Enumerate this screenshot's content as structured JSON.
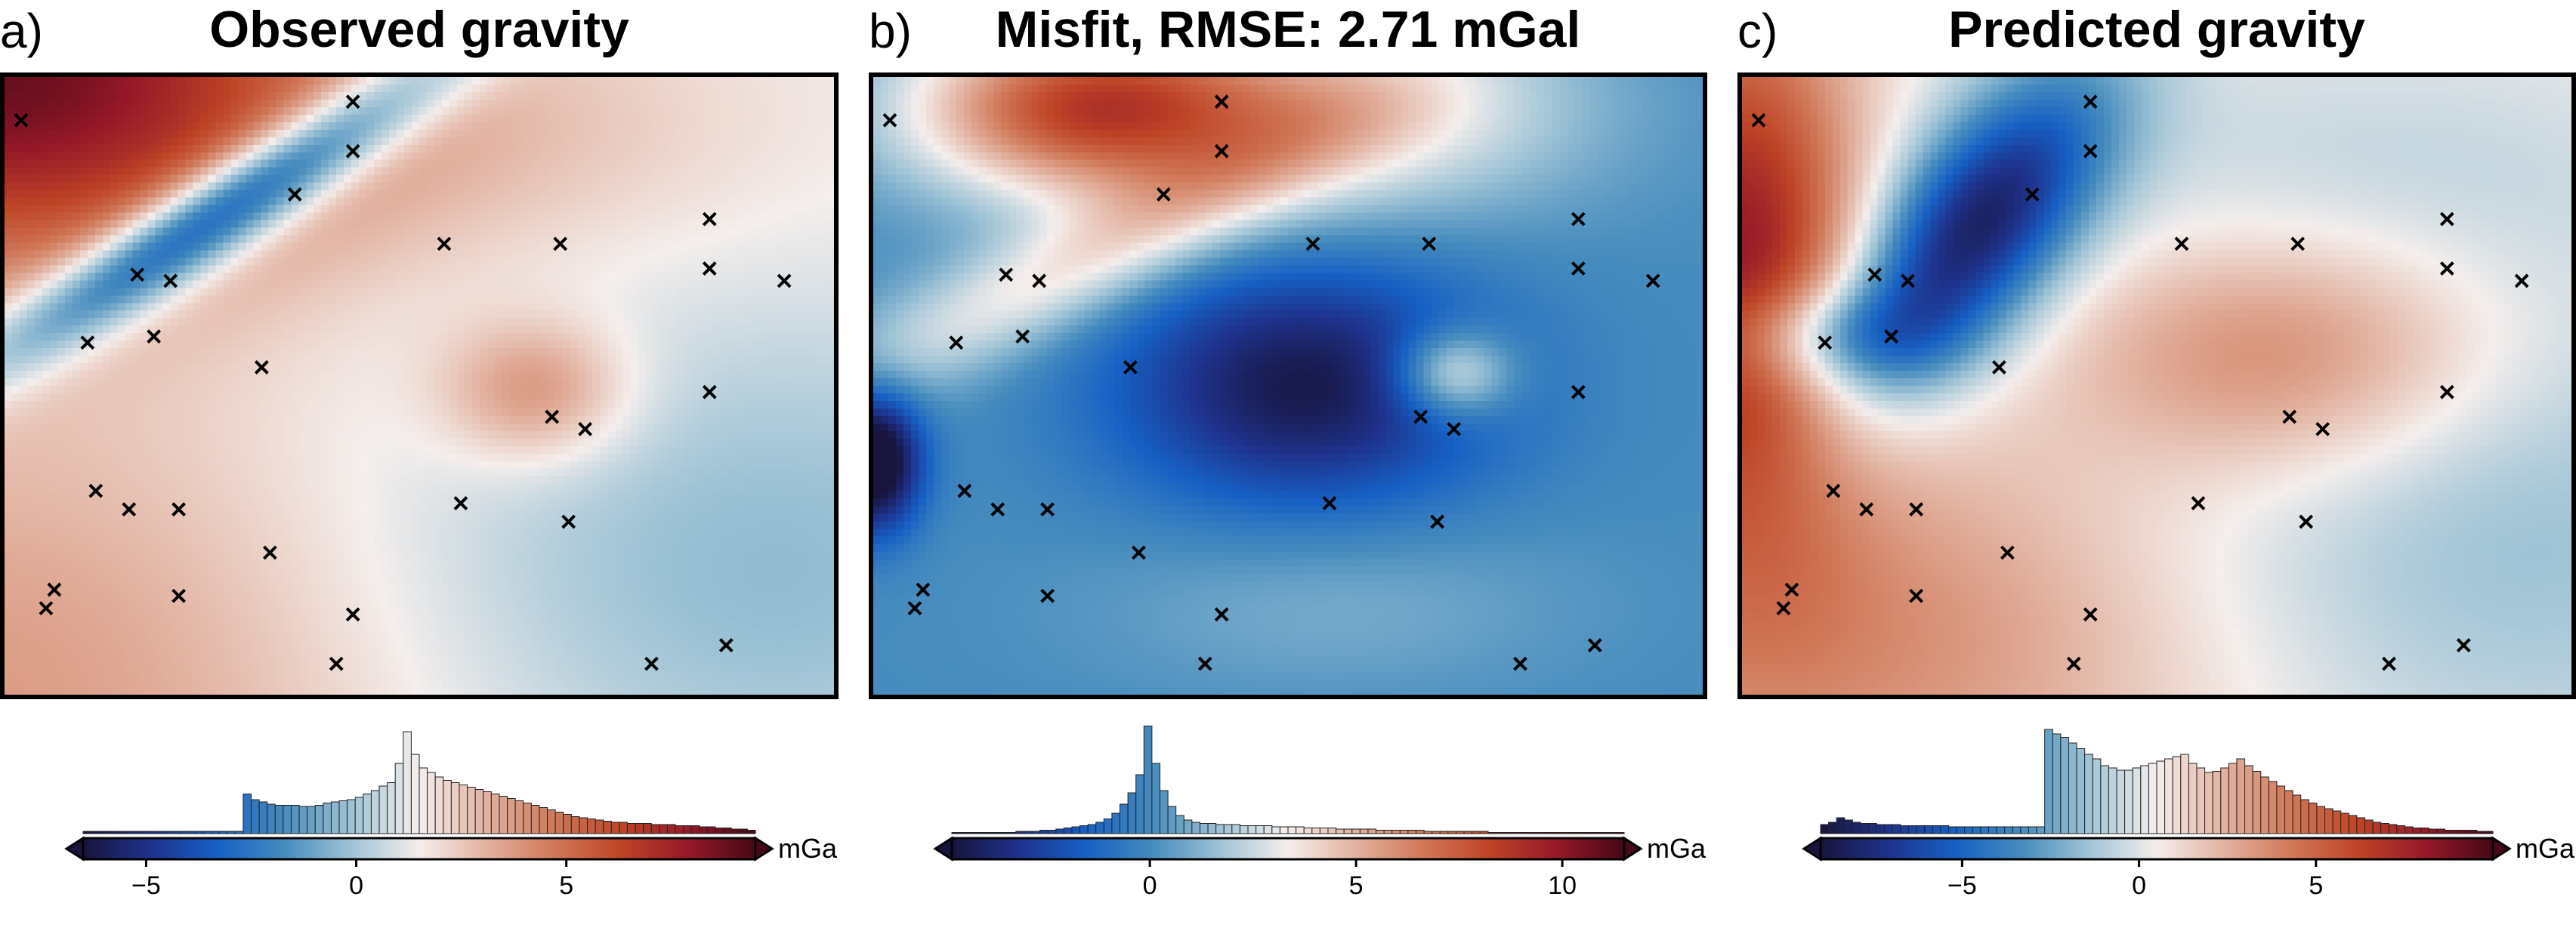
{
  "panels": [
    {
      "letter": "a)",
      "title": "Observed gravity"
    },
    {
      "letter": "b)",
      "title": "Misfit, RMSE: 2.71 mGal"
    },
    {
      "letter": "c)",
      "title": "Predicted gravity"
    }
  ],
  "chart_data": [
    {
      "type": "heatmap",
      "title": "Observed gravity",
      "colorbar": {
        "unit": "mGal",
        "range": [
          -6.5,
          9.5
        ],
        "ticks": [
          -5,
          0,
          5
        ],
        "tick_labels": [
          "−5",
          "0",
          "5"
        ],
        "cmap": "diverging blue-white-red"
      },
      "histogram": [
        0.02,
        0.02,
        0.02,
        0.02,
        0.02,
        0.02,
        0.02,
        0.02,
        0.02,
        0.02,
        0.02,
        0.02,
        0.02,
        0.02,
        0.02,
        0.02,
        0.02,
        0.02,
        0.02,
        0.02,
        0.35,
        0.3,
        0.28,
        0.26,
        0.25,
        0.25,
        0.25,
        0.24,
        0.24,
        0.25,
        0.27,
        0.28,
        0.29,
        0.3,
        0.32,
        0.35,
        0.38,
        0.42,
        0.45,
        0.62,
        0.9,
        0.7,
        0.58,
        0.54,
        0.5,
        0.47,
        0.45,
        0.43,
        0.41,
        0.39,
        0.37,
        0.35,
        0.33,
        0.31,
        0.29,
        0.27,
        0.25,
        0.23,
        0.21,
        0.19,
        0.17,
        0.15,
        0.14,
        0.13,
        0.12,
        0.11,
        0.1,
        0.1,
        0.09,
        0.09,
        0.09,
        0.08,
        0.08,
        0.08,
        0.07,
        0.07,
        0.07,
        0.06,
        0.06,
        0.05,
        0.05,
        0.04,
        0.04,
        0.03
      ],
      "markers": [
        [
          0.02,
          0.07
        ],
        [
          0.42,
          0.04
        ],
        [
          0.42,
          0.12
        ],
        [
          0.35,
          0.19
        ],
        [
          0.16,
          0.32
        ],
        [
          0.2,
          0.33
        ],
        [
          0.1,
          0.43
        ],
        [
          0.18,
          0.42
        ],
        [
          0.31,
          0.47
        ],
        [
          0.53,
          0.27
        ],
        [
          0.67,
          0.27
        ],
        [
          0.85,
          0.23
        ],
        [
          0.85,
          0.31
        ],
        [
          0.94,
          0.33
        ],
        [
          0.85,
          0.51
        ],
        [
          0.66,
          0.55
        ],
        [
          0.7,
          0.57
        ],
        [
          0.11,
          0.67
        ],
        [
          0.15,
          0.7
        ],
        [
          0.21,
          0.7
        ],
        [
          0.32,
          0.77
        ],
        [
          0.55,
          0.69
        ],
        [
          0.68,
          0.72
        ],
        [
          0.06,
          0.83
        ],
        [
          0.05,
          0.86
        ],
        [
          0.21,
          0.84
        ],
        [
          0.42,
          0.87
        ],
        [
          0.4,
          0.95
        ],
        [
          0.78,
          0.95
        ],
        [
          0.87,
          0.92
        ]
      ]
    },
    {
      "type": "heatmap",
      "title": "Misfit, RMSE: 2.71 mGal",
      "colorbar": {
        "unit": "mGal",
        "range": [
          -4.8,
          11.5
        ],
        "ticks": [
          0,
          5,
          10
        ],
        "tick_labels": [
          "0",
          "5",
          "10"
        ],
        "cmap": "diverging blue-white-red"
      },
      "histogram": [
        0.01,
        0.01,
        0.01,
        0.01,
        0.01,
        0.01,
        0.01,
        0.01,
        0.02,
        0.02,
        0.02,
        0.03,
        0.03,
        0.04,
        0.05,
        0.06,
        0.07,
        0.08,
        0.1,
        0.13,
        0.18,
        0.26,
        0.36,
        0.52,
        0.95,
        0.62,
        0.38,
        0.24,
        0.16,
        0.12,
        0.1,
        0.09,
        0.09,
        0.08,
        0.08,
        0.08,
        0.07,
        0.07,
        0.07,
        0.07,
        0.06,
        0.06,
        0.06,
        0.06,
        0.05,
        0.05,
        0.05,
        0.05,
        0.04,
        0.04,
        0.04,
        0.04,
        0.04,
        0.03,
        0.03,
        0.03,
        0.03,
        0.03,
        0.03,
        0.02,
        0.02,
        0.02,
        0.02,
        0.02,
        0.02,
        0.02,
        0.02,
        0.01,
        0.01,
        0.01,
        0.01,
        0.01,
        0.01,
        0.01,
        0.01,
        0.01,
        0.01,
        0.01,
        0.01,
        0.01,
        0.01,
        0.01,
        0.01,
        0.01
      ],
      "markers": [
        [
          0.02,
          0.07
        ],
        [
          0.42,
          0.04
        ],
        [
          0.42,
          0.12
        ],
        [
          0.35,
          0.19
        ],
        [
          0.16,
          0.32
        ],
        [
          0.2,
          0.33
        ],
        [
          0.1,
          0.43
        ],
        [
          0.18,
          0.42
        ],
        [
          0.31,
          0.47
        ],
        [
          0.53,
          0.27
        ],
        [
          0.67,
          0.27
        ],
        [
          0.85,
          0.23
        ],
        [
          0.85,
          0.31
        ],
        [
          0.94,
          0.33
        ],
        [
          0.85,
          0.51
        ],
        [
          0.66,
          0.55
        ],
        [
          0.7,
          0.57
        ],
        [
          0.11,
          0.67
        ],
        [
          0.15,
          0.7
        ],
        [
          0.21,
          0.7
        ],
        [
          0.32,
          0.77
        ],
        [
          0.55,
          0.69
        ],
        [
          0.68,
          0.72
        ],
        [
          0.06,
          0.83
        ],
        [
          0.05,
          0.86
        ],
        [
          0.21,
          0.84
        ],
        [
          0.42,
          0.87
        ],
        [
          0.4,
          0.95
        ],
        [
          0.78,
          0.95
        ],
        [
          0.87,
          0.92
        ]
      ]
    },
    {
      "type": "heatmap",
      "title": "Predicted gravity",
      "colorbar": {
        "unit": "mGal",
        "range": [
          -9,
          10
        ],
        "ticks": [
          -5,
          0,
          5
        ],
        "tick_labels": [
          "−5",
          "0",
          "5"
        ],
        "cmap": "diverging blue-white-red"
      },
      "histogram": [
        0.08,
        0.1,
        0.14,
        0.12,
        0.1,
        0.09,
        0.09,
        0.08,
        0.08,
        0.08,
        0.07,
        0.07,
        0.07,
        0.07,
        0.07,
        0.07,
        0.06,
        0.06,
        0.06,
        0.06,
        0.06,
        0.06,
        0.06,
        0.06,
        0.06,
        0.06,
        0.06,
        0.06,
        0.92,
        0.88,
        0.85,
        0.8,
        0.75,
        0.7,
        0.66,
        0.6,
        0.58,
        0.56,
        0.56,
        0.58,
        0.6,
        0.62,
        0.64,
        0.66,
        0.68,
        0.7,
        0.62,
        0.58,
        0.54,
        0.55,
        0.58,
        0.62,
        0.66,
        0.6,
        0.55,
        0.5,
        0.46,
        0.42,
        0.38,
        0.34,
        0.3,
        0.27,
        0.24,
        0.22,
        0.2,
        0.18,
        0.16,
        0.14,
        0.12,
        0.1,
        0.09,
        0.08,
        0.07,
        0.06,
        0.05,
        0.05,
        0.04,
        0.04,
        0.03,
        0.03,
        0.03,
        0.03,
        0.02,
        0.02
      ],
      "markers": [
        [
          0.02,
          0.07
        ],
        [
          0.42,
          0.04
        ],
        [
          0.42,
          0.12
        ],
        [
          0.35,
          0.19
        ],
        [
          0.16,
          0.32
        ],
        [
          0.2,
          0.33
        ],
        [
          0.1,
          0.43
        ],
        [
          0.18,
          0.42
        ],
        [
          0.31,
          0.47
        ],
        [
          0.53,
          0.27
        ],
        [
          0.67,
          0.27
        ],
        [
          0.85,
          0.23
        ],
        [
          0.85,
          0.31
        ],
        [
          0.94,
          0.33
        ],
        [
          0.85,
          0.51
        ],
        [
          0.66,
          0.55
        ],
        [
          0.7,
          0.57
        ],
        [
          0.11,
          0.67
        ],
        [
          0.15,
          0.7
        ],
        [
          0.21,
          0.7
        ],
        [
          0.32,
          0.77
        ],
        [
          0.55,
          0.69
        ],
        [
          0.68,
          0.72
        ],
        [
          0.06,
          0.83
        ],
        [
          0.05,
          0.86
        ],
        [
          0.21,
          0.84
        ],
        [
          0.42,
          0.87
        ],
        [
          0.4,
          0.95
        ],
        [
          0.78,
          0.95
        ],
        [
          0.87,
          0.92
        ]
      ]
    }
  ]
}
